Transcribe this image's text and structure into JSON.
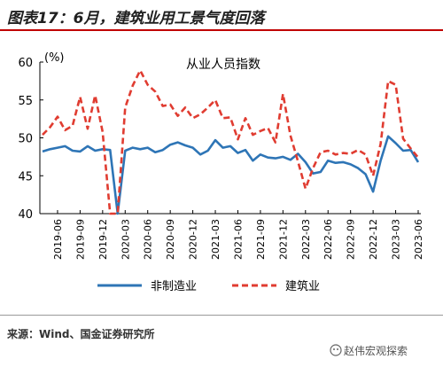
{
  "figure": {
    "title": "图表17：6月，建筑业用工景气度回落",
    "source": "来源：Wind、国金证券研究所",
    "watermark": "赵伟宏观探索"
  },
  "colors": {
    "manufacturing": "#2e75b6",
    "construction": "#e03c31",
    "rule": "#c00000"
  },
  "chart_data": {
    "type": "line",
    "title": "从业人员指数",
    "unit_label": "(%)",
    "ylim": [
      40,
      60
    ],
    "yticks": [
      40,
      45,
      50,
      55,
      60
    ],
    "x": [
      "2019-04",
      "2019-05",
      "2019-06",
      "2019-07",
      "2019-08",
      "2019-09",
      "2019-10",
      "2019-11",
      "2019-12",
      "2020-01",
      "2020-02",
      "2020-03",
      "2020-04",
      "2020-05",
      "2020-06",
      "2020-07",
      "2020-08",
      "2020-09",
      "2020-10",
      "2020-11",
      "2020-12",
      "2021-01",
      "2021-02",
      "2021-03",
      "2021-04",
      "2021-05",
      "2021-06",
      "2021-07",
      "2021-08",
      "2021-09",
      "2021-10",
      "2021-11",
      "2021-12",
      "2022-01",
      "2022-02",
      "2022-03",
      "2022-04",
      "2022-05",
      "2022-06",
      "2022-07",
      "2022-08",
      "2022-09",
      "2022-10",
      "2022-11",
      "2022-12",
      "2023-01",
      "2023-02",
      "2023-03",
      "2023-04",
      "2023-05",
      "2023-06"
    ],
    "xtick_labels": [
      "2019-06",
      "2019-09",
      "2019-12",
      "2020-03",
      "2020-06",
      "2020-09",
      "2020-12",
      "2021-03",
      "2021-06",
      "2021-09",
      "2021-12",
      "2022-03",
      "2022-06",
      "2022-09",
      "2022-12",
      "2023-03",
      "2023-06"
    ],
    "series": [
      {
        "name": "非制造业",
        "values": [
          48.2,
          48.5,
          48.7,
          48.9,
          48.3,
          48.2,
          48.9,
          48.3,
          48.5,
          48.4,
          40.0,
          48.3,
          48.7,
          48.5,
          48.7,
          48.1,
          48.4,
          49.1,
          49.4,
          49.0,
          48.7,
          47.8,
          48.3,
          49.7,
          48.7,
          48.9,
          48.0,
          48.4,
          47.0,
          47.8,
          47.4,
          47.3,
          47.5,
          47.1,
          47.9,
          46.8,
          45.3,
          45.5,
          47.0,
          46.7,
          46.8,
          46.5,
          46.0,
          45.2,
          42.9,
          47.0,
          50.2,
          49.3,
          48.3,
          48.4,
          46.8
        ]
      },
      {
        "name": "建筑业",
        "values": [
          50.4,
          51.4,
          52.8,
          51.0,
          51.6,
          55.4,
          51.2,
          55.6,
          50.8,
          40.0,
          40.0,
          54.0,
          56.9,
          58.9,
          57.0,
          56.1,
          54.2,
          54.4,
          52.9,
          54.0,
          52.6,
          53.1,
          54.0,
          55.0,
          52.6,
          52.7,
          49.8,
          52.6,
          50.4,
          50.9,
          51.3,
          49.4,
          55.8,
          50.3,
          46.9,
          43.3,
          46.0,
          48.1,
          48.3,
          47.8,
          48.0,
          47.9,
          48.4,
          47.8,
          45.0,
          49.2,
          57.5,
          57.0,
          49.9,
          48.6,
          47.4
        ]
      }
    ]
  }
}
